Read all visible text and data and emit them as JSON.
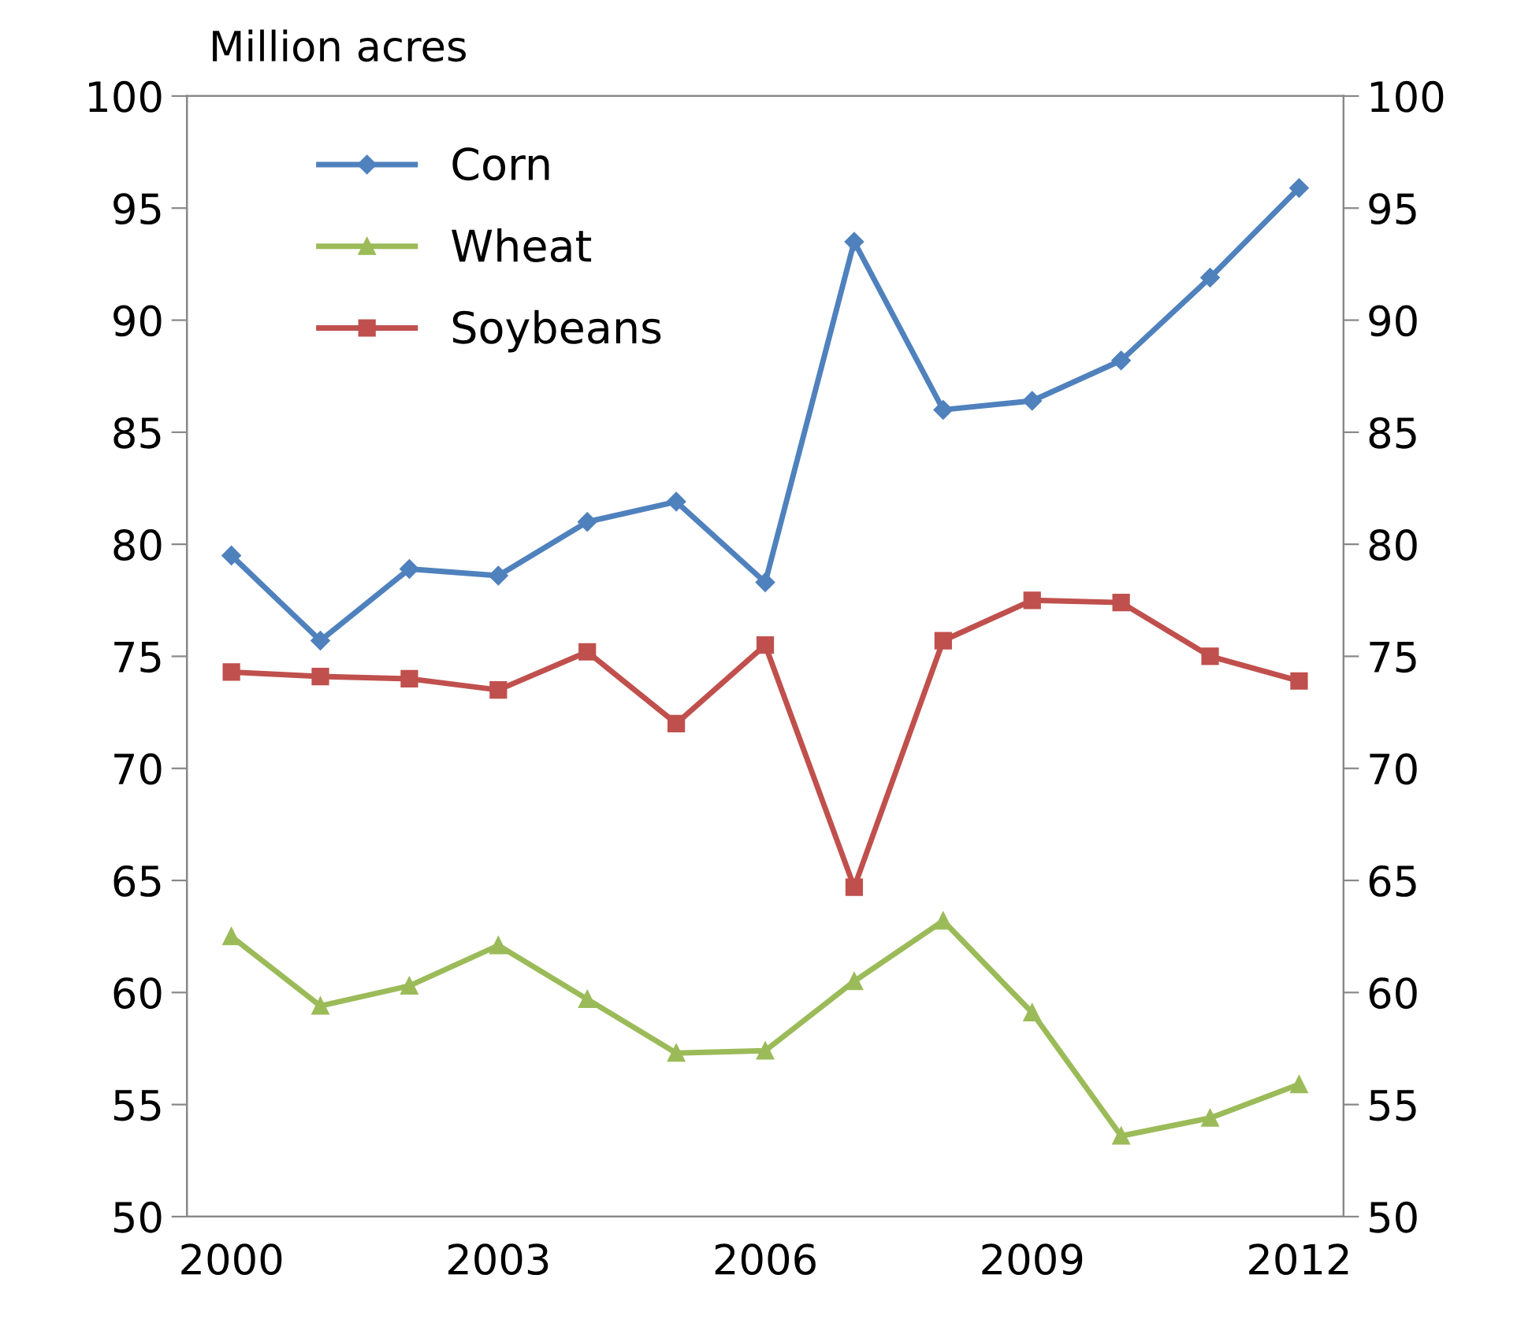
{
  "chart_data": {
    "type": "line",
    "ylabel": "Million acres",
    "categories": [
      "2000",
      null,
      null,
      "2003",
      null,
      null,
      "2006",
      null,
      null,
      "2009",
      null,
      null,
      "2012"
    ],
    "series": [
      {
        "name": "Corn",
        "color": "#4f81bd",
        "marker": "diamond",
        "values": [
          79.5,
          75.7,
          78.9,
          78.6,
          81.0,
          81.9,
          78.3,
          93.5,
          86.0,
          86.4,
          88.2,
          91.9,
          95.9
        ]
      },
      {
        "name": "Wheat",
        "color": "#9bbb59",
        "marker": "triangle",
        "values": [
          62.5,
          59.4,
          60.3,
          62.1,
          59.7,
          57.3,
          57.4,
          60.5,
          63.2,
          59.1,
          53.6,
          54.4,
          55.9
        ]
      },
      {
        "name": "Soybeans",
        "color": "#c0504d",
        "marker": "square",
        "values": [
          74.3,
          74.1,
          74.0,
          73.5,
          75.2,
          72.0,
          75.5,
          64.7,
          75.7,
          77.5,
          77.4,
          75.0,
          73.9
        ]
      }
    ],
    "ylim": [
      50,
      100
    ],
    "yticks": [
      50,
      55,
      60,
      65,
      70,
      75,
      80,
      85,
      90,
      95,
      100
    ],
    "y2lim": [
      50,
      100
    ],
    "y2ticks": [
      50,
      55,
      60,
      65,
      70,
      75,
      80,
      85,
      90,
      95,
      100
    ],
    "grid": false,
    "legend": "top left",
    "line_style": "solid"
  }
}
